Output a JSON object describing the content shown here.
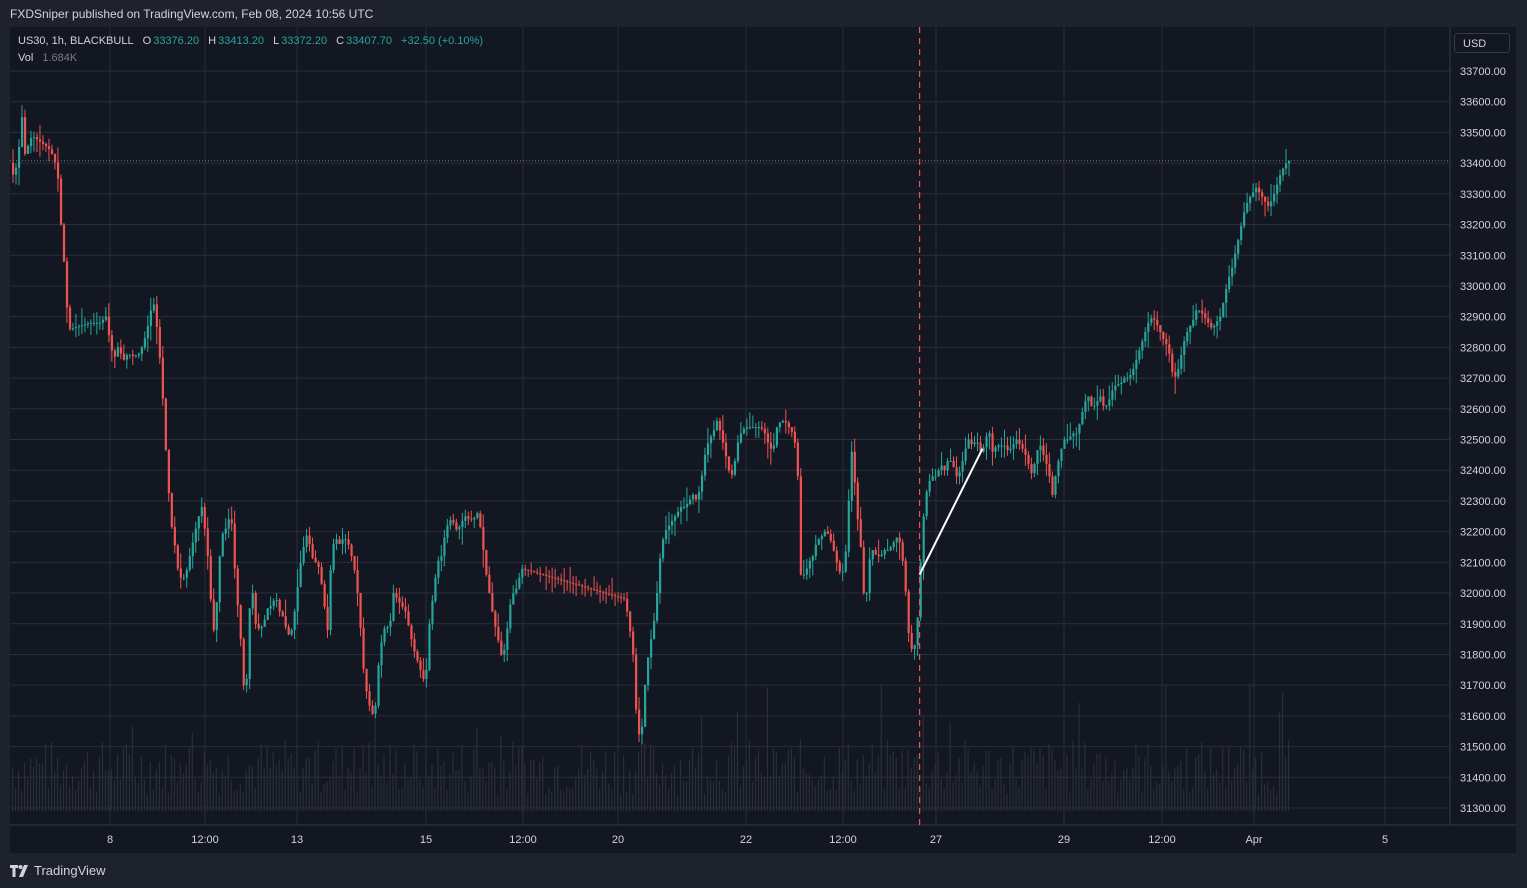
{
  "header": {
    "published": "FXDSniper published on TradingView.com, Feb 08, 2024 10:56 UTC"
  },
  "legend": {
    "symbol": "US30, 1h, BLACKBULL",
    "o_label": "O",
    "o_value": "33376.20",
    "h_label": "H",
    "h_value": "33413.20",
    "l_label": "L",
    "l_value": "33372.20",
    "c_label": "C",
    "c_value": "33407.70",
    "change": "+32.50 (+0.10%)",
    "vol_label": "Vol",
    "vol_value": "1.684K"
  },
  "currency": "USD",
  "footer": {
    "brand": "TradingView",
    "brand_icon": "tradingview-logo-icon"
  },
  "colors": {
    "up": "#26a69a",
    "down": "#ef5350",
    "background": "#131722",
    "grid": "#2a2e39",
    "axis_text": "#d1d4dc",
    "marker": "#ef5350",
    "trendline": "#ffffff"
  },
  "chart_data": {
    "type": "candlestick",
    "title": "",
    "xlabel": "",
    "ylabel": "",
    "ylim": [
      31250,
      33780
    ],
    "grid": true,
    "y_ticks": [
      "31300.00",
      "31400.00",
      "31500.00",
      "31600.00",
      "31700.00",
      "31800.00",
      "31900.00",
      "32000.00",
      "32100.00",
      "32200.00",
      "32300.00",
      "32400.00",
      "32500.00",
      "32600.00",
      "32700.00",
      "32800.00",
      "32900.00",
      "33000.00",
      "33100.00",
      "33200.00",
      "33300.00",
      "33400.00",
      "33500.00",
      "33600.00",
      "33700.00"
    ],
    "x_ticks": [
      "8",
      "12:00",
      "13",
      "15",
      "12:00",
      "20",
      "22",
      "12:00",
      "27",
      "29",
      "12:00",
      "Apr",
      "5"
    ],
    "last_price": 33407.7,
    "path": [
      [
        0,
        33400
      ],
      [
        4,
        33350
      ],
      [
        8,
        33420
      ],
      [
        12,
        33550
      ],
      [
        15,
        33430
      ],
      [
        22,
        33490
      ],
      [
        30,
        33470
      ],
      [
        38,
        33450
      ],
      [
        44,
        33420
      ],
      [
        48,
        33350
      ],
      [
        51,
        33200
      ],
      [
        54,
        33080
      ],
      [
        57,
        32930
      ],
      [
        60,
        32860
      ],
      [
        70,
        32870
      ],
      [
        80,
        32880
      ],
      [
        90,
        32880
      ],
      [
        96,
        32900
      ],
      [
        100,
        32820
      ],
      [
        104,
        32760
      ],
      [
        108,
        32800
      ],
      [
        114,
        32760
      ],
      [
        118,
        32780
      ],
      [
        124,
        32770
      ],
      [
        130,
        32780
      ],
      [
        136,
        32840
      ],
      [
        140,
        32900
      ],
      [
        143,
        32960
      ],
      [
        146,
        32900
      ],
      [
        149,
        32800
      ],
      [
        152,
        32700
      ],
      [
        155,
        32500
      ],
      [
        158,
        32400
      ],
      [
        160,
        32250
      ],
      [
        164,
        32180
      ],
      [
        168,
        32080
      ],
      [
        172,
        32040
      ],
      [
        176,
        32060
      ],
      [
        180,
        32120
      ],
      [
        184,
        32180
      ],
      [
        188,
        32240
      ],
      [
        192,
        32280
      ],
      [
        195,
        32210
      ],
      [
        198,
        32120
      ],
      [
        201,
        31980
      ],
      [
        204,
        31880
      ],
      [
        208,
        32000
      ],
      [
        211,
        32180
      ],
      [
        214,
        32200
      ],
      [
        218,
        32220
      ],
      [
        221,
        32280
      ],
      [
        224,
        32120
      ],
      [
        228,
        31960
      ],
      [
        231,
        31850
      ],
      [
        234,
        31700
      ],
      [
        237,
        31720
      ],
      [
        240,
        31950
      ],
      [
        243,
        32000
      ],
      [
        246,
        31900
      ],
      [
        250,
        31880
      ],
      [
        254,
        31900
      ],
      [
        258,
        31950
      ],
      [
        262,
        31960
      ],
      [
        266,
        31990
      ],
      [
        270,
        31940
      ],
      [
        274,
        31920
      ],
      [
        278,
        31860
      ],
      [
        282,
        31880
      ],
      [
        286,
        31960
      ],
      [
        290,
        32080
      ],
      [
        294,
        32150
      ],
      [
        298,
        32200
      ],
      [
        302,
        32120
      ],
      [
        306,
        32100
      ],
      [
        310,
        32080
      ],
      [
        314,
        31980
      ],
      [
        318,
        31880
      ],
      [
        322,
        32140
      ],
      [
        326,
        32180
      ],
      [
        330,
        32160
      ],
      [
        334,
        32180
      ],
      [
        338,
        32170
      ],
      [
        342,
        32120
      ],
      [
        346,
        32060
      ],
      [
        350,
        31940
      ],
      [
        353,
        31780
      ],
      [
        356,
        31700
      ],
      [
        359,
        31640
      ],
      [
        362,
        31620
      ],
      [
        365,
        31580
      ],
      [
        368,
        31740
      ],
      [
        372,
        31840
      ],
      [
        376,
        31900
      ],
      [
        380,
        31880
      ],
      [
        384,
        32000
      ],
      [
        388,
        31980
      ],
      [
        392,
        31960
      ],
      [
        396,
        31940
      ],
      [
        400,
        31880
      ],
      [
        404,
        31820
      ],
      [
        408,
        31780
      ],
      [
        412,
        31740
      ],
      [
        416,
        31700
      ],
      [
        420,
        31900
      ],
      [
        424,
        32000
      ],
      [
        428,
        32100
      ],
      [
        432,
        32120
      ],
      [
        436,
        32200
      ],
      [
        440,
        32240
      ],
      [
        444,
        32230
      ],
      [
        448,
        32200
      ],
      [
        452,
        32230
      ],
      [
        456,
        32250
      ],
      [
        460,
        32240
      ],
      [
        464,
        32240
      ],
      [
        468,
        32260
      ],
      [
        472,
        32200
      ],
      [
        476,
        32080
      ],
      [
        480,
        32000
      ],
      [
        484,
        31920
      ],
      [
        488,
        31860
      ],
      [
        492,
        31800
      ],
      [
        496,
        31820
      ],
      [
        500,
        31950
      ],
      [
        504,
        32000
      ],
      [
        508,
        32020
      ],
      [
        512,
        32080
      ],
      [
        616,
        31980
      ],
      [
        620,
        31900
      ],
      [
        624,
        31800
      ],
      [
        628,
        31560
      ],
      [
        632,
        31520
      ],
      [
        636,
        31700
      ],
      [
        640,
        31820
      ],
      [
        644,
        31880
      ],
      [
        648,
        32000
      ],
      [
        652,
        32150
      ],
      [
        656,
        32200
      ],
      [
        660,
        32220
      ],
      [
        664,
        32240
      ],
      [
        668,
        32260
      ],
      [
        672,
        32280
      ],
      [
        676,
        32280
      ],
      [
        680,
        32300
      ],
      [
        684,
        32320
      ],
      [
        688,
        32300
      ],
      [
        692,
        32360
      ],
      [
        696,
        32450
      ],
      [
        700,
        32500
      ],
      [
        704,
        32520
      ],
      [
        708,
        32560
      ],
      [
        712,
        32520
      ],
      [
        716,
        32460
      ],
      [
        720,
        32400
      ],
      [
        724,
        32380
      ],
      [
        728,
        32480
      ],
      [
        732,
        32520
      ],
      [
        736,
        32540
      ],
      [
        740,
        32540
      ],
      [
        744,
        32540
      ],
      [
        748,
        32540
      ],
      [
        752,
        32540
      ],
      [
        756,
        32520
      ],
      [
        760,
        32480
      ],
      [
        764,
        32460
      ],
      [
        768,
        32540
      ],
      [
        772,
        32560
      ],
      [
        776,
        32560
      ],
      [
        780,
        32540
      ],
      [
        784,
        32520
      ],
      [
        788,
        32460
      ],
      [
        790,
        32300
      ],
      [
        792,
        32060
      ],
      [
        796,
        32060
      ],
      [
        800,
        32100
      ],
      [
        804,
        32120
      ],
      [
        808,
        32170
      ],
      [
        812,
        32180
      ],
      [
        816,
        32200
      ],
      [
        820,
        32190
      ],
      [
        824,
        32150
      ],
      [
        828,
        32100
      ],
      [
        832,
        32060
      ],
      [
        836,
        32080
      ],
      [
        840,
        32300
      ],
      [
        843,
        32460
      ],
      [
        846,
        32360
      ],
      [
        850,
        32200
      ],
      [
        854,
        32100
      ],
      [
        856,
        31900
      ],
      [
        860,
        32100
      ],
      [
        864,
        32140
      ],
      [
        868,
        32120
      ],
      [
        872,
        32120
      ],
      [
        876,
        32140
      ],
      [
        880,
        32140
      ],
      [
        884,
        32160
      ],
      [
        888,
        32180
      ],
      [
        892,
        32160
      ],
      [
        896,
        32050
      ],
      [
        900,
        31870
      ],
      [
        904,
        31800
      ],
      [
        908,
        31860
      ],
      [
        912,
        32100
      ],
      [
        916,
        32300
      ],
      [
        920,
        32360
      ],
      [
        924,
        32380
      ],
      [
        928,
        32380
      ],
      [
        932,
        32420
      ],
      [
        936,
        32400
      ],
      [
        940,
        32440
      ],
      [
        944,
        32420
      ],
      [
        948,
        32380
      ],
      [
        952,
        32400
      ],
      [
        956,
        32460
      ],
      [
        960,
        32500
      ],
      [
        964,
        32480
      ],
      [
        968,
        32500
      ],
      [
        972,
        32460
      ],
      [
        976,
        32480
      ],
      [
        980,
        32540
      ],
      [
        984,
        32460
      ],
      [
        988,
        32480
      ],
      [
        992,
        32480
      ],
      [
        996,
        32480
      ],
      [
        1000,
        32460
      ],
      [
        1004,
        32480
      ],
      [
        1008,
        32500
      ],
      [
        1012,
        32480
      ],
      [
        1016,
        32460
      ],
      [
        1020,
        32420
      ],
      [
        1024,
        32380
      ],
      [
        1028,
        32460
      ],
      [
        1032,
        32480
      ],
      [
        1036,
        32440
      ],
      [
        1040,
        32400
      ],
      [
        1044,
        32320
      ],
      [
        1048,
        32400
      ],
      [
        1052,
        32460
      ],
      [
        1056,
        32500
      ],
      [
        1060,
        32500
      ],
      [
        1064,
        32520
      ],
      [
        1068,
        32520
      ],
      [
        1072,
        32560
      ],
      [
        1076,
        32620
      ],
      [
        1080,
        32640
      ],
      [
        1084,
        32600
      ],
      [
        1088,
        32620
      ],
      [
        1092,
        32640
      ],
      [
        1096,
        32600
      ],
      [
        1100,
        32620
      ],
      [
        1104,
        32660
      ],
      [
        1108,
        32680
      ],
      [
        1112,
        32680
      ],
      [
        1116,
        32700
      ],
      [
        1120,
        32700
      ],
      [
        1124,
        32720
      ],
      [
        1128,
        32760
      ],
      [
        1132,
        32800
      ],
      [
        1136,
        32840
      ],
      [
        1140,
        32880
      ],
      [
        1144,
        32900
      ],
      [
        1148,
        32880
      ],
      [
        1152,
        32850
      ],
      [
        1156,
        32820
      ],
      [
        1160,
        32800
      ],
      [
        1164,
        32720
      ],
      [
        1168,
        32700
      ],
      [
        1172,
        32760
      ],
      [
        1176,
        32820
      ],
      [
        1180,
        32860
      ],
      [
        1184,
        32880
      ],
      [
        1188,
        32920
      ],
      [
        1192,
        32920
      ],
      [
        1196,
        32900
      ],
      [
        1200,
        32880
      ],
      [
        1204,
        32860
      ],
      [
        1208,
        32880
      ],
      [
        1212,
        32900
      ],
      [
        1216,
        32960
      ],
      [
        1220,
        33020
      ],
      [
        1224,
        33060
      ],
      [
        1228,
        33120
      ],
      [
        1232,
        33180
      ],
      [
        1236,
        33240
      ],
      [
        1240,
        33280
      ],
      [
        1244,
        33300
      ],
      [
        1248,
        33320
      ],
      [
        1252,
        33300
      ],
      [
        1256,
        33280
      ],
      [
        1260,
        33260
      ],
      [
        1264,
        33280
      ],
      [
        1268,
        33320
      ],
      [
        1272,
        33360
      ],
      [
        1276,
        33390
      ],
      [
        1280,
        33407.7
      ]
    ],
    "volume_max": 1.0,
    "marker_vline_bar": 909,
    "trendline": {
      "from": [
        909,
        32060
      ],
      "to": [
        972,
        32470
      ]
    }
  }
}
